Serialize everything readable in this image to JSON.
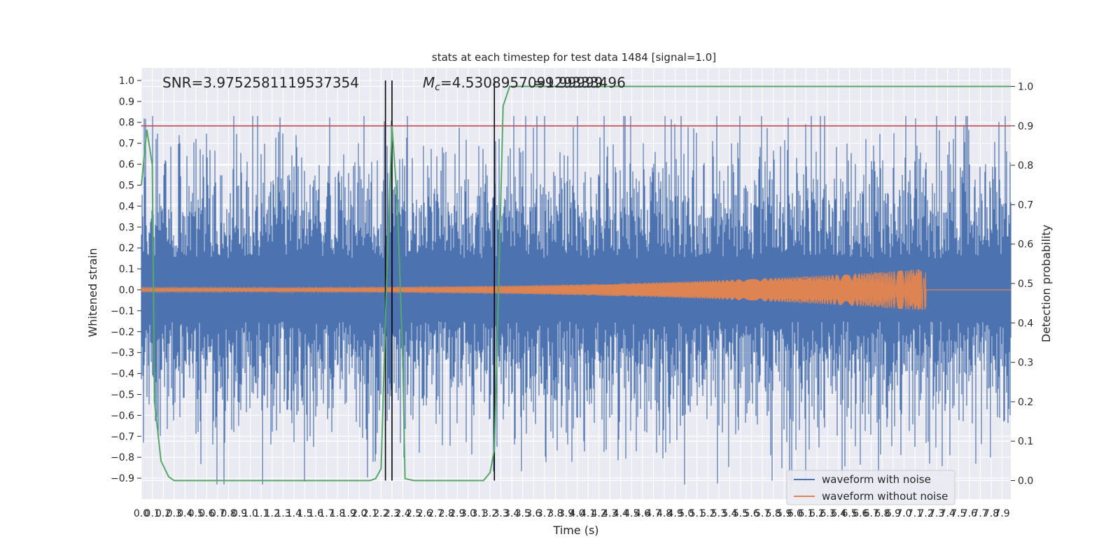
{
  "chart_data": {
    "type": "line",
    "title": "stats at each timestep for test data 1484 [signal=1.0]",
    "xlabel": "Time (s)",
    "ylabel": "Whitened strain",
    "y2label": "Detection probability",
    "xlim": [
      0.0,
      7.98
    ],
    "ylim": [
      -1.0,
      1.06
    ],
    "y2lim": [
      -0.047,
      1.047
    ],
    "x_ticks": [
      "0.0",
      "0.1",
      "0.2",
      "0.3",
      "0.4",
      "0.5",
      "0.6",
      "0.7",
      "0.8",
      "0.9",
      "1.0",
      "1.1",
      "1.2",
      "1.3",
      "1.4",
      "1.5",
      "1.6",
      "1.7",
      "1.8",
      "1.9",
      "2.0",
      "2.1",
      "2.2",
      "2.3",
      "2.4",
      "2.5",
      "2.6",
      "2.7",
      "2.8",
      "2.9",
      "3.0",
      "3.1",
      "3.2",
      "3.3",
      "3.4",
      "3.5",
      "3.6",
      "3.7",
      "3.8",
      "3.9",
      "4.0",
      "4.1",
      "4.2",
      "4.3",
      "4.4",
      "4.5",
      "4.6",
      "4.7",
      "4.8",
      "4.9",
      "5.0",
      "5.1",
      "5.2",
      "5.3",
      "5.4",
      "5.5",
      "5.6",
      "5.7",
      "5.8",
      "5.9",
      "6.0",
      "6.1",
      "6.2",
      "6.3",
      "6.4",
      "6.5",
      "6.6",
      "6.7",
      "6.8",
      "6.9",
      "7.0",
      "7.1",
      "7.2",
      "7.3",
      "7.4",
      "7.5",
      "7.6",
      "7.7",
      "7.8",
      "7.9"
    ],
    "y_ticks": [
      "1.0",
      "0.9",
      "0.8",
      "0.7",
      "0.6",
      "0.5",
      "0.4",
      "0.3",
      "0.2",
      "0.1",
      "0.0",
      "−0.1",
      "−0.2",
      "−0.3",
      "−0.4",
      "−0.5",
      "−0.6",
      "−0.7",
      "−0.8",
      "−0.9"
    ],
    "y2_ticks": [
      "1.0",
      "0.9",
      "0.8",
      "0.7",
      "0.6",
      "0.5",
      "0.4",
      "0.3",
      "0.2",
      "0.1",
      "0.0"
    ],
    "annotations": {
      "snr": "SNR=3.9752581119537354",
      "mc_symbol": "M",
      "mc_subscript": "c",
      "mc_value": "=4.530895709129333496",
      "mc_overlap": "=9.99999"
    },
    "threshold_line": {
      "name": "threshold",
      "y2": 0.9,
      "color": "#c44e52"
    },
    "vertical_markers": [
      2.24,
      2.3,
      3.24
    ],
    "probability_series": {
      "name": "detection probability",
      "color": "#55a868",
      "x": [
        0.0,
        0.05,
        0.1,
        0.12,
        0.18,
        0.25,
        0.3,
        1.0,
        1.5,
        2.0,
        2.1,
        2.15,
        2.2,
        2.25,
        2.3,
        2.35,
        2.4,
        2.42,
        2.5,
        3.0,
        3.14,
        3.2,
        3.24,
        3.28,
        3.32,
        3.38,
        3.5,
        4.0,
        5.0,
        6.0,
        7.0,
        7.98
      ],
      "y": [
        0.75,
        0.89,
        0.8,
        0.2,
        0.05,
        0.01,
        0.0,
        0.0,
        0.0,
        0.0,
        0.0,
        0.005,
        0.03,
        0.5,
        0.9,
        0.7,
        0.3,
        0.005,
        0.0,
        0.0,
        0.0,
        0.02,
        0.08,
        0.5,
        0.95,
        1.0,
        1.0,
        1.0,
        1.0,
        1.0,
        1.0,
        1.0
      ]
    },
    "series": [
      {
        "name": "waveform with noise",
        "color": "#4c72b0",
        "envelope": 0.35,
        "peak": 0.83
      },
      {
        "name": "waveform without noise",
        "color": "#dd8452",
        "chirp_start_amplitude": 0.01,
        "chirp_end_amplitude": 0.1,
        "merger_time": 7.2
      }
    ],
    "legend_position": "lower-right"
  }
}
